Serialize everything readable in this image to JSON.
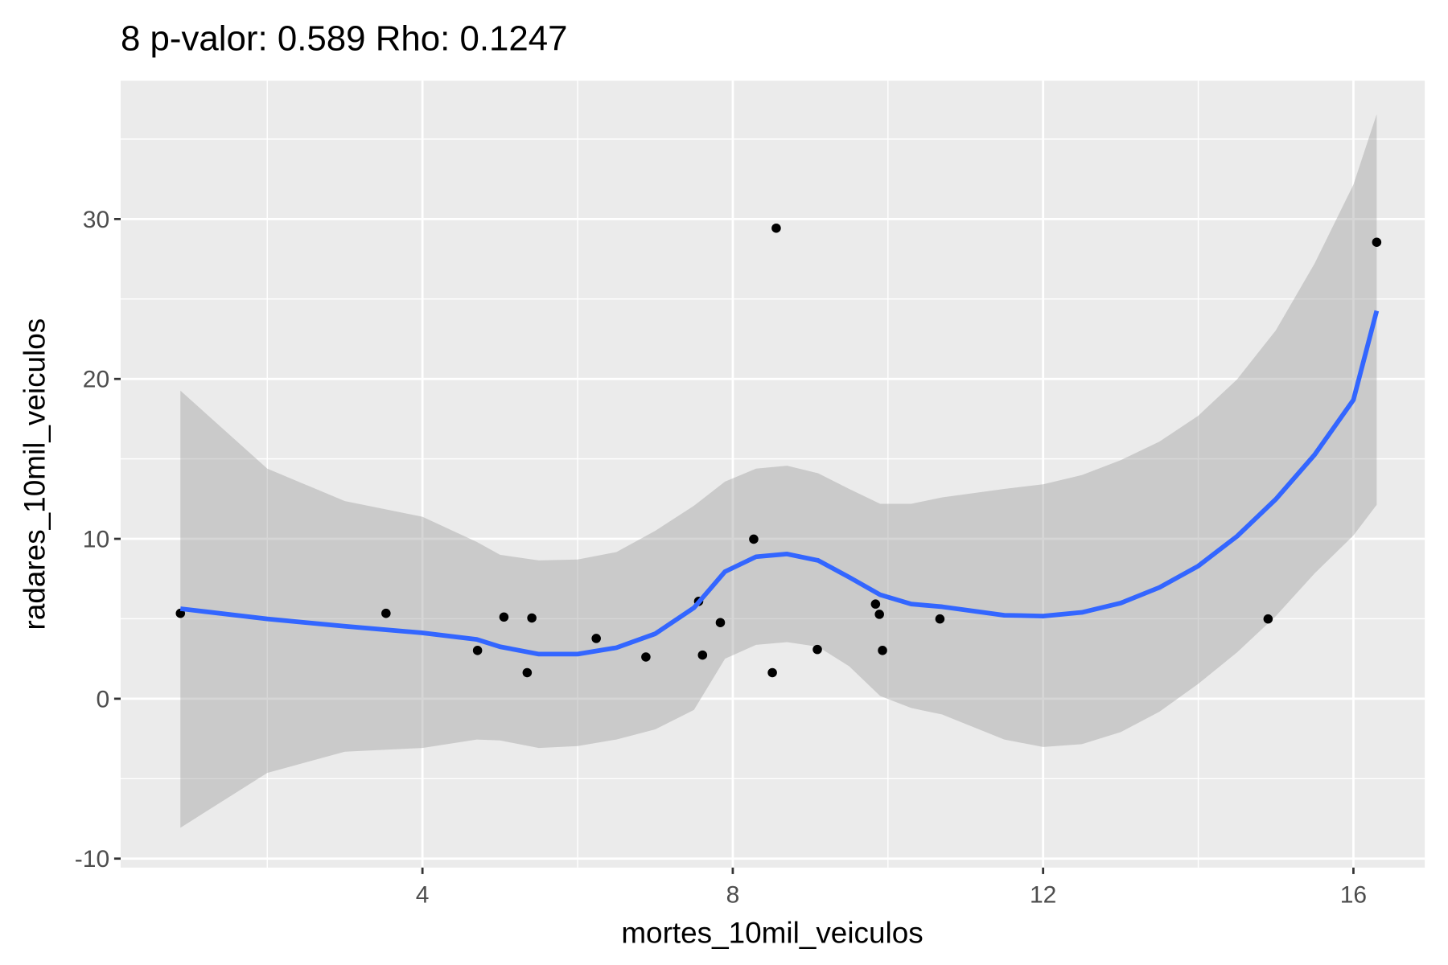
{
  "chart_data": {
    "type": "scatter",
    "title": "8 p-valor: 0.589 Rho: 0.1247",
    "x_label": "mortes_10mil_veiculos",
    "y_label": "radares_10mil_veiculos",
    "xlim": [
      0.11,
      16.92
    ],
    "ylim": [
      -10.56,
      38.65
    ],
    "xticks": [
      4,
      8,
      12,
      16
    ],
    "yticks": [
      -10,
      0,
      10,
      20,
      30
    ],
    "xminor": [
      2,
      6,
      10,
      14
    ],
    "yminor": [
      -5,
      5,
      15,
      25,
      35
    ],
    "grid": true,
    "points": {
      "color": "#000000",
      "x": [
        0.88,
        3.53,
        4.71,
        5.05,
        5.35,
        5.41,
        6.24,
        6.88,
        7.56,
        7.61,
        7.84,
        8.27,
        8.56,
        8.51,
        9.09,
        9.84,
        9.89,
        9.93,
        10.67,
        14.9,
        16.3
      ],
      "y": [
        5.34,
        5.34,
        3.02,
        5.11,
        1.63,
        5.05,
        3.77,
        2.61,
        6.09,
        2.73,
        4.76,
        9.98,
        29.43,
        1.63,
        3.08,
        5.92,
        5.28,
        3.02,
        4.99,
        4.99,
        28.55
      ]
    },
    "smooth": {
      "color": "#3366ff",
      "band_color": "#999999",
      "x": [
        0.88,
        2,
        3,
        4,
        4.7,
        5,
        5.5,
        6,
        6.5,
        7,
        7.5,
        7.9,
        8.3,
        8.7,
        9.1,
        9.5,
        9.9,
        10.3,
        10.7,
        11.5,
        12,
        12.5,
        13,
        13.5,
        14,
        14.5,
        15,
        15.5,
        16,
        16.3
      ],
      "y": [
        5.63,
        4.99,
        4.53,
        4.12,
        3.71,
        3.25,
        2.79,
        2.79,
        3.19,
        4.06,
        5.69,
        7.95,
        8.88,
        9.05,
        8.65,
        7.6,
        6.5,
        5.92,
        5.75,
        5.22,
        5.17,
        5.4,
        5.98,
        6.96,
        8.3,
        10.16,
        12.48,
        15.26,
        18.69,
        24.26
      ],
      "upper": [
        19.27,
        14.39,
        12.36,
        11.38,
        9.81,
        9.0,
        8.65,
        8.71,
        9.17,
        10.5,
        12.07,
        13.58,
        14.39,
        14.57,
        14.1,
        13.12,
        12.19,
        12.19,
        12.59,
        13.12,
        13.41,
        13.99,
        14.92,
        16.08,
        17.7,
        19.97,
        23.04,
        27.22,
        32.15,
        36.56
      ],
      "lower": [
        -8.07,
        -4.64,
        -3.31,
        -3.08,
        -2.55,
        -2.61,
        -3.08,
        -2.96,
        -2.55,
        -1.92,
        -0.7,
        2.5,
        3.37,
        3.54,
        3.25,
        2.03,
        0.17,
        -0.58,
        -0.99,
        -2.55,
        -3.02,
        -2.84,
        -2.09,
        -0.81,
        0.93,
        2.9,
        5.17,
        7.84,
        10.21,
        12.13
      ]
    }
  }
}
